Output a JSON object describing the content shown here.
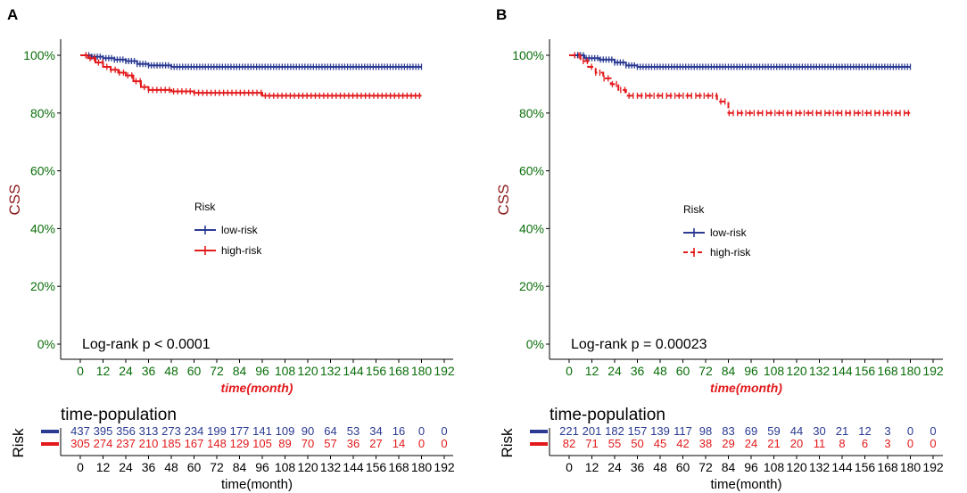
{
  "chart_data": [
    {
      "type": "line",
      "panel_label": "A",
      "ylabel": "CSS",
      "xlabel": "time(month)",
      "yticks": [
        "0%",
        "20%",
        "40%",
        "60%",
        "80%",
        "100%"
      ],
      "xticks": [
        "0",
        "12",
        "24",
        "36",
        "48",
        "60",
        "72",
        "84",
        "96",
        "108",
        "120",
        "132",
        "144",
        "156",
        "168",
        "180",
        "192"
      ],
      "xlim": [
        0,
        192
      ],
      "ylim": [
        0,
        1
      ],
      "legend_title": "Risk",
      "pvalue_text": "Log-rank  p < 0.0001",
      "series": [
        {
          "name": "low-risk",
          "color": "#2b3a93",
          "style": "solid",
          "x": [
            0,
            6,
            12,
            18,
            24,
            30,
            36,
            48,
            60,
            84,
            120,
            180
          ],
          "y": [
            1.0,
            0.995,
            0.99,
            0.985,
            0.98,
            0.97,
            0.965,
            0.96,
            0.96,
            0.96,
            0.96,
            0.96
          ]
        },
        {
          "name": "high-risk",
          "color": "#e31a1c",
          "style": "solid",
          "x": [
            0,
            4,
            8,
            12,
            16,
            20,
            24,
            28,
            32,
            36,
            48,
            60,
            72,
            96,
            120,
            180
          ],
          "y": [
            1.0,
            0.99,
            0.975,
            0.96,
            0.95,
            0.94,
            0.93,
            0.91,
            0.89,
            0.88,
            0.875,
            0.87,
            0.87,
            0.86,
            0.86,
            0.86
          ]
        }
      ],
      "risk_table": {
        "title": "time-population",
        "ylabel": "Risk",
        "xlabel": "time(month)",
        "rows": [
          {
            "name": "low-risk",
            "color": "#2b3a93",
            "values": [
              "437",
              "395",
              "356",
              "313",
              "273",
              "234",
              "199",
              "177",
              "141",
              "109",
              "90",
              "64",
              "53",
              "34",
              "16",
              "0",
              "0"
            ]
          },
          {
            "name": "high-risk",
            "color": "#e31a1c",
            "values": [
              "305",
              "274",
              "237",
              "210",
              "185",
              "167",
              "148",
              "129",
              "105",
              "89",
              "70",
              "57",
              "36",
              "27",
              "14",
              "0",
              "0"
            ]
          }
        ]
      }
    },
    {
      "type": "line",
      "panel_label": "B",
      "ylabel": "CSS",
      "xlabel": "time(month)",
      "yticks": [
        "0%",
        "20%",
        "40%",
        "60%",
        "80%",
        "100%"
      ],
      "xticks": [
        "0",
        "12",
        "24",
        "36",
        "48",
        "60",
        "72",
        "84",
        "96",
        "108",
        "120",
        "132",
        "144",
        "156",
        "168",
        "180",
        "192"
      ],
      "xlim": [
        0,
        192
      ],
      "ylim": [
        0,
        1
      ],
      "legend_title": "Risk",
      "pvalue_text": "Log-rank  p = 0.00023",
      "series": [
        {
          "name": "low-risk",
          "color": "#2b3a93",
          "style": "solid",
          "x": [
            0,
            8,
            16,
            24,
            30,
            36,
            60,
            120,
            180
          ],
          "y": [
            1.0,
            0.99,
            0.985,
            0.975,
            0.965,
            0.96,
            0.96,
            0.96,
            0.96
          ]
        },
        {
          "name": "high-risk",
          "color": "#e31a1c",
          "style": "dashed",
          "x": [
            0,
            6,
            10,
            14,
            18,
            22,
            26,
            30,
            36,
            48,
            60,
            72,
            78,
            84,
            96,
            120,
            180
          ],
          "y": [
            1.0,
            0.98,
            0.96,
            0.94,
            0.92,
            0.9,
            0.88,
            0.86,
            0.86,
            0.86,
            0.86,
            0.86,
            0.84,
            0.8,
            0.8,
            0.8,
            0.8
          ]
        }
      ],
      "risk_table": {
        "title": "time-population",
        "ylabel": "Risk",
        "xlabel": "time(month)",
        "rows": [
          {
            "name": "low-risk",
            "color": "#2b3a93",
            "values": [
              "221",
              "201",
              "182",
              "157",
              "139",
              "117",
              "98",
              "83",
              "69",
              "59",
              "44",
              "30",
              "21",
              "12",
              "3",
              "0",
              "0"
            ]
          },
          {
            "name": "high-risk",
            "color": "#e31a1c",
            "values": [
              "82",
              "71",
              "55",
              "50",
              "45",
              "42",
              "38",
              "29",
              "24",
              "21",
              "20",
              "11",
              "8",
              "6",
              "3",
              "0",
              "0"
            ]
          }
        ]
      }
    }
  ]
}
